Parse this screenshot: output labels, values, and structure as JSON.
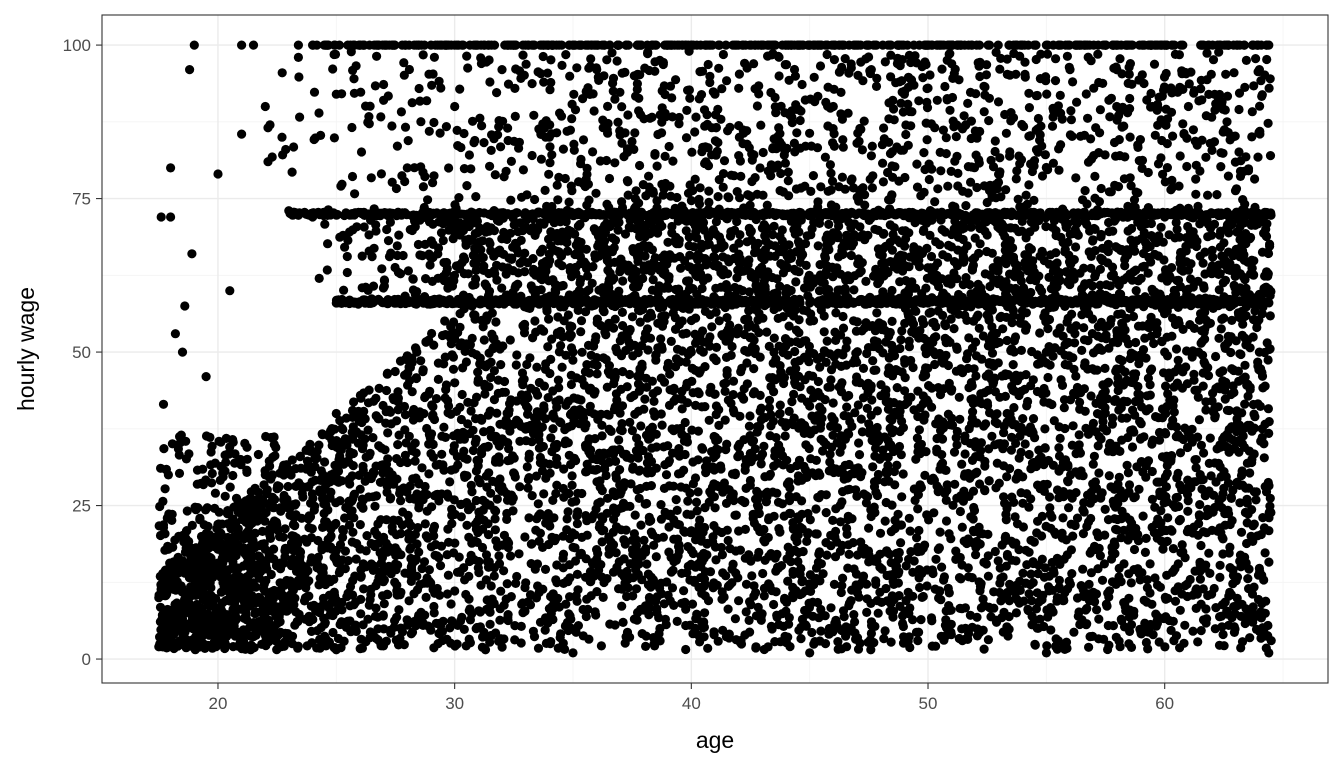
{
  "chart_data": {
    "type": "scatter",
    "title": "",
    "xlabel": "age",
    "ylabel": "hourly wage",
    "xlim": [
      15.1,
      66.9
    ],
    "ylim": [
      -3.9,
      104.9
    ],
    "x_ticks": [
      20,
      30,
      40,
      50,
      60
    ],
    "y_ticks": [
      0,
      25,
      50,
      75,
      100
    ],
    "x_tick_labels": [
      "20",
      "30",
      "40",
      "50",
      "60"
    ],
    "y_tick_labels": [
      "0",
      "25",
      "50",
      "75",
      "100"
    ],
    "grid": true,
    "theme": "bw",
    "point_color": "#000000",
    "x_range_of_data": [
      17.5,
      64.5
    ],
    "y_range_of_data": [
      1,
      100
    ],
    "top_code_value": 100,
    "series": [
      {
        "values_sample": [
          [
            19,
            100
          ],
          [
            18.8,
            96
          ],
          [
            18,
            80
          ],
          [
            17.6,
            72
          ],
          [
            18,
            72
          ],
          [
            18.9,
            66
          ],
          [
            20,
            79
          ],
          [
            21,
            100
          ],
          [
            21.5,
            100
          ],
          [
            23.4,
            100
          ],
          [
            23.4,
            98
          ],
          [
            22,
            90
          ],
          [
            22.2,
            87
          ],
          [
            21,
            85.5
          ],
          [
            20.5,
            60
          ],
          [
            18.6,
            57.5
          ],
          [
            17.7,
            41.5
          ],
          [
            18.2,
            53
          ],
          [
            19.5,
            46
          ],
          [
            18.5,
            50
          ],
          [
            24,
            100
          ],
          [
            26,
            100
          ],
          [
            30,
            100
          ],
          [
            35,
            100
          ],
          [
            40,
            100
          ],
          [
            45,
            100
          ],
          [
            50,
            100
          ],
          [
            55,
            100
          ],
          [
            60,
            100
          ],
          [
            64.3,
            100
          ],
          [
            25,
            92
          ],
          [
            27,
            91
          ],
          [
            30,
            90
          ],
          [
            32,
            96
          ],
          [
            36,
            96
          ],
          [
            41,
            92
          ],
          [
            46,
            90
          ],
          [
            50,
            93
          ],
          [
            56,
            96
          ],
          [
            61,
            90
          ],
          [
            64,
            96
          ],
          [
            24,
            72
          ],
          [
            30,
            72
          ],
          [
            40,
            72
          ],
          [
            50,
            72
          ],
          [
            60,
            72
          ],
          [
            64,
            72.5
          ],
          [
            25,
            58
          ],
          [
            30,
            58
          ],
          [
            35,
            58
          ],
          [
            40,
            58
          ],
          [
            45,
            58
          ],
          [
            50,
            58
          ],
          [
            55,
            58
          ],
          [
            60,
            58
          ],
          [
            28,
            80
          ],
          [
            34,
            85
          ],
          [
            38,
            88
          ],
          [
            42,
            82
          ],
          [
            47,
            84
          ],
          [
            52,
            86
          ],
          [
            57,
            82
          ],
          [
            62,
            84
          ],
          [
            17.5,
            10
          ],
          [
            18,
            15
          ],
          [
            20,
            20
          ],
          [
            22,
            30
          ],
          [
            25,
            40
          ],
          [
            30,
            45
          ],
          [
            35,
            50
          ],
          [
            40,
            50
          ],
          [
            45,
            50
          ],
          [
            50,
            50
          ],
          [
            55,
            50
          ],
          [
            60,
            50
          ],
          [
            64,
            50
          ],
          [
            17.5,
            2
          ],
          [
            25,
            1.5
          ],
          [
            35,
            1
          ],
          [
            45,
            1
          ],
          [
            55,
            1
          ],
          [
            64.4,
            1
          ],
          [
            64.5,
            3
          ]
        ]
      }
    ]
  }
}
